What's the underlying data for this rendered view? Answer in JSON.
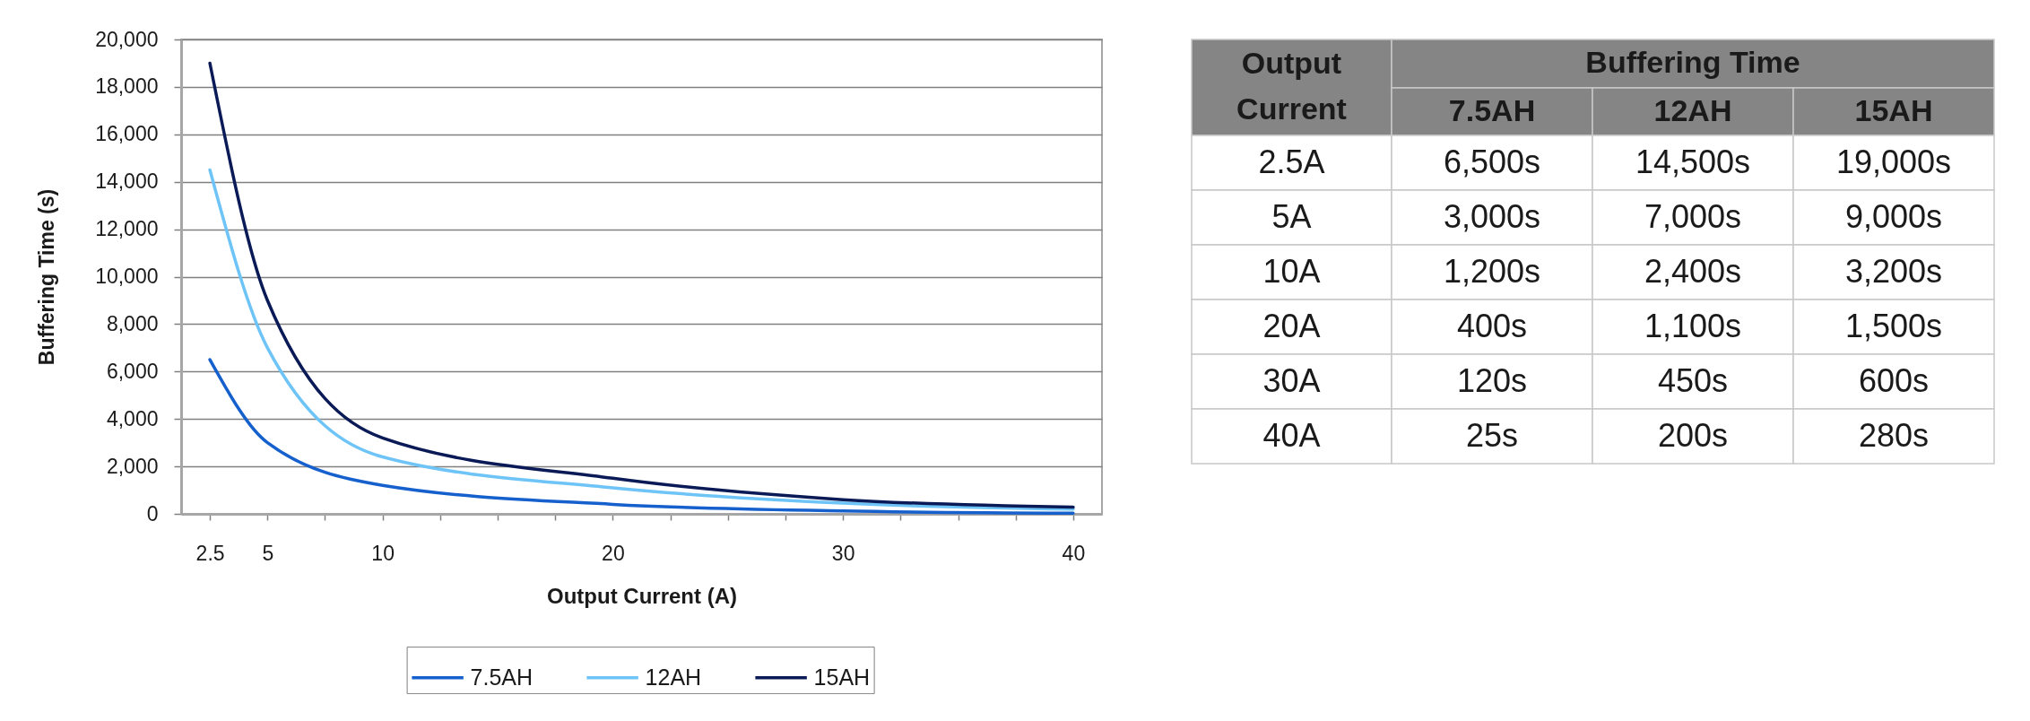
{
  "chart_data": {
    "type": "line",
    "xlabel": "Output Current (A)",
    "ylabel": "Buffering Time (s)",
    "x": [
      2.5,
      5,
      10,
      20,
      30,
      40
    ],
    "series": [
      {
        "name": "7.5AH",
        "color": "#1560cc",
        "values": [
          6500,
          3000,
          1200,
          400,
          120,
          25
        ]
      },
      {
        "name": "12AH",
        "color": "#6ec4f7",
        "values": [
          14500,
          7000,
          2400,
          1100,
          450,
          200
        ]
      },
      {
        "name": "15AH",
        "color": "#0a1a56",
        "values": [
          19000,
          9000,
          3200,
          1500,
          600,
          280
        ]
      }
    ],
    "xlim": [
      1.25,
      41.25
    ],
    "xticks": [
      2.5,
      5,
      {
        "value": 7.5,
        "label": null
      },
      10,
      {
        "value": 12.5,
        "label": null
      },
      {
        "value": 15,
        "label": null
      },
      {
        "value": 17.5,
        "label": null
      },
      20,
      {
        "value": 22.5,
        "label": null
      },
      {
        "value": 25,
        "label": null
      },
      {
        "value": 27.5,
        "label": null
      },
      30,
      {
        "value": 32.5,
        "label": null
      },
      {
        "value": 35,
        "label": null
      },
      {
        "value": 37.5,
        "label": null
      },
      40
    ],
    "ylim": [
      0,
      20000
    ],
    "yticks": [
      0,
      {
        "value": 2000,
        "label": "2,000"
      },
      {
        "value": 4000,
        "label": "4,000"
      },
      {
        "value": 6000,
        "label": "6,000"
      },
      {
        "value": 8000,
        "label": "8,000"
      },
      {
        "value": 10000,
        "label": "10,000"
      },
      {
        "value": 12000,
        "label": "12,000"
      },
      {
        "value": 14000,
        "label": "14,000"
      },
      {
        "value": 16000,
        "label": "16,000"
      },
      {
        "value": 18000,
        "label": "18,000"
      },
      {
        "value": 20000,
        "label": "20,000"
      }
    ],
    "grid": "y",
    "legend": "bottom",
    "marker": "none",
    "line_style": "solid",
    "annotations": [
      "Output Current",
      "Buffering Time",
      "2.5A",
      "6,500s",
      "14,500s",
      "19,000s",
      "5A",
      "3,000s",
      "7,000s",
      "9,000s",
      "10A",
      "1,200s",
      "2,400s",
      "3,200s",
      "20A",
      "400s",
      "1,100s",
      "1,500s",
      "30A",
      "120s",
      "450s",
      "600s",
      "40A",
      "25s",
      "200s",
      "280s"
    ]
  }
}
